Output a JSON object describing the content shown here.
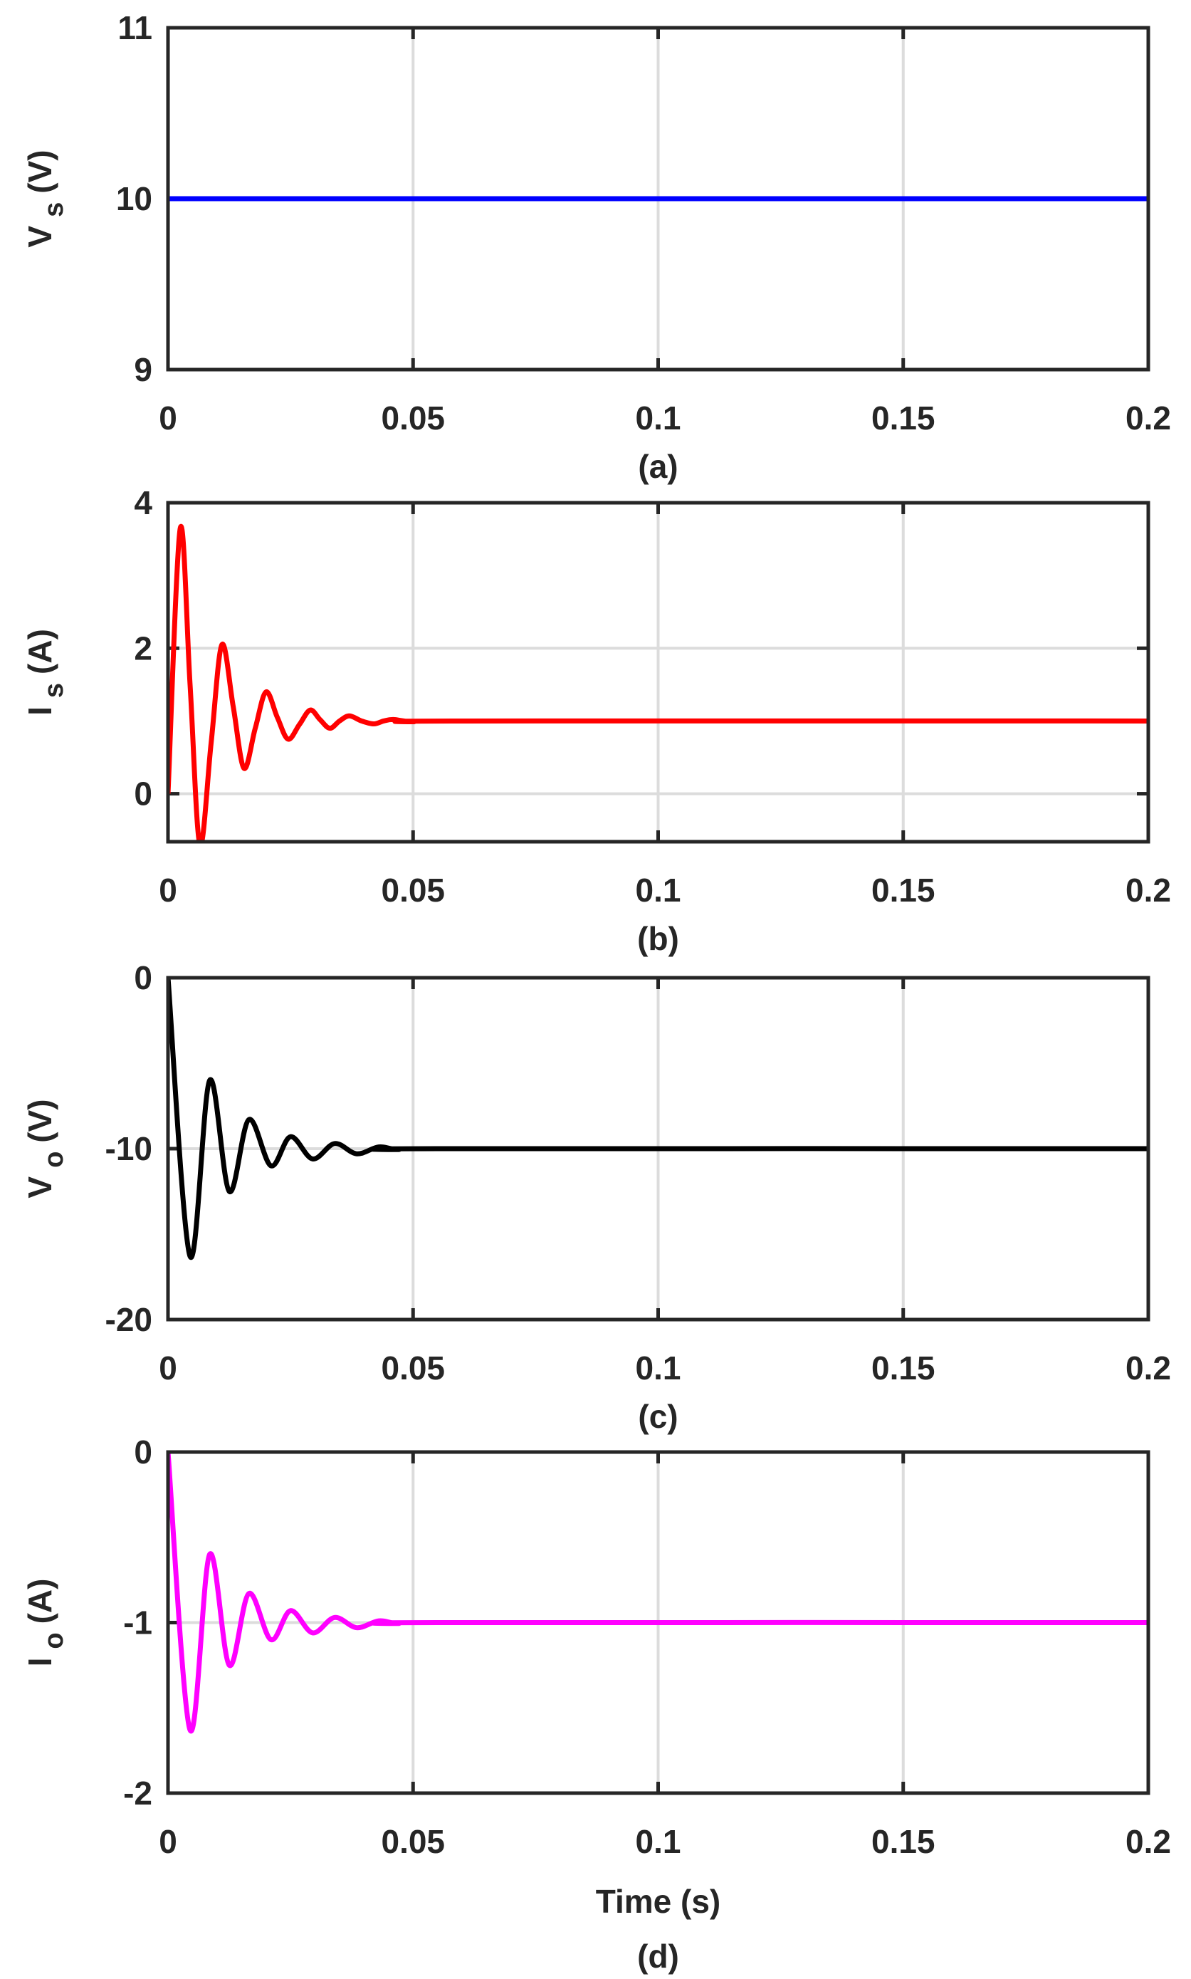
{
  "chart_data": [
    {
      "type": "line",
      "caption": "(a)",
      "ylabel_parts": [
        "V",
        "s",
        "(V)"
      ],
      "x": [
        0,
        0.2
      ],
      "series": [
        {
          "color": "#0000ff",
          "values": [
            10,
            10
          ]
        }
      ],
      "xlim": [
        0,
        0.2
      ],
      "xticks": [
        0,
        0.05,
        0.1,
        0.15,
        0.2
      ],
      "ylim": [
        9,
        11
      ],
      "yticks": [
        9,
        10,
        11
      ],
      "grid": true
    },
    {
      "type": "line",
      "caption": "(b)",
      "ylabel_parts": [
        "I",
        "s",
        "(A)"
      ],
      "x": [
        0,
        0.0025,
        0.0045,
        0.0065,
        0.0088,
        0.011,
        0.0133,
        0.0155,
        0.0178,
        0.02,
        0.0223,
        0.0245,
        0.0268,
        0.029,
        0.031,
        0.033,
        0.035,
        0.037,
        0.0395,
        0.042,
        0.044,
        0.046,
        0.05,
        0.06,
        0.2
      ],
      "series": [
        {
          "color": "#ff0000",
          "values": [
            0,
            3.65,
            1.5,
            -0.7,
            0.7,
            2.05,
            1.2,
            0.35,
            0.9,
            1.4,
            1.05,
            0.75,
            0.95,
            1.15,
            1.02,
            0.9,
            1.0,
            1.07,
            1.0,
            0.96,
            1.0,
            1.02,
            0.99,
            1,
            1
          ]
        }
      ],
      "xlim": [
        0,
        0.2
      ],
      "xticks": [
        0,
        0.05,
        0.1,
        0.15,
        0.2
      ],
      "ylim": [
        -0.66,
        4
      ],
      "yticks": [
        0,
        2,
        4
      ],
      "grid": true
    },
    {
      "type": "line",
      "caption": "(c)",
      "ylabel_parts": [
        "V",
        "o",
        "(V)"
      ],
      "x": [
        0,
        0.0045,
        0.0085,
        0.0125,
        0.0165,
        0.021,
        0.025,
        0.0295,
        0.034,
        0.0385,
        0.043,
        0.047,
        0.055,
        0.2
      ],
      "series": [
        {
          "color": "#000000",
          "values": [
            0,
            -16.3,
            -6,
            -12.5,
            -8.3,
            -11,
            -9.3,
            -10.6,
            -9.7,
            -10.3,
            -9.9,
            -10.05,
            -10,
            -10
          ]
        }
      ],
      "xlim": [
        0,
        0.2
      ],
      "xticks": [
        0,
        0.05,
        0.1,
        0.15,
        0.2
      ],
      "ylim": [
        -20,
        0
      ],
      "yticks": [
        -20,
        -10,
        0
      ],
      "grid": true
    },
    {
      "type": "line",
      "caption": "(d)",
      "ylabel_parts": [
        "I",
        "o",
        "(A)"
      ],
      "xlabel": "Time (s)",
      "x": [
        0,
        0.0045,
        0.0085,
        0.0125,
        0.0165,
        0.021,
        0.025,
        0.0295,
        0.034,
        0.0385,
        0.043,
        0.047,
        0.055,
        0.2
      ],
      "series": [
        {
          "color": "#ff00ff",
          "values": [
            0,
            -1.63,
            -0.6,
            -1.25,
            -0.83,
            -1.1,
            -0.93,
            -1.06,
            -0.97,
            -1.03,
            -0.99,
            -1.005,
            -1,
            -1
          ]
        }
      ],
      "xlim": [
        0,
        0.2
      ],
      "xticks": [
        0,
        0.05,
        0.1,
        0.15,
        0.2
      ],
      "ylim": [
        -2,
        0
      ],
      "yticks": [
        -2,
        -1,
        0
      ],
      "grid": true
    }
  ]
}
